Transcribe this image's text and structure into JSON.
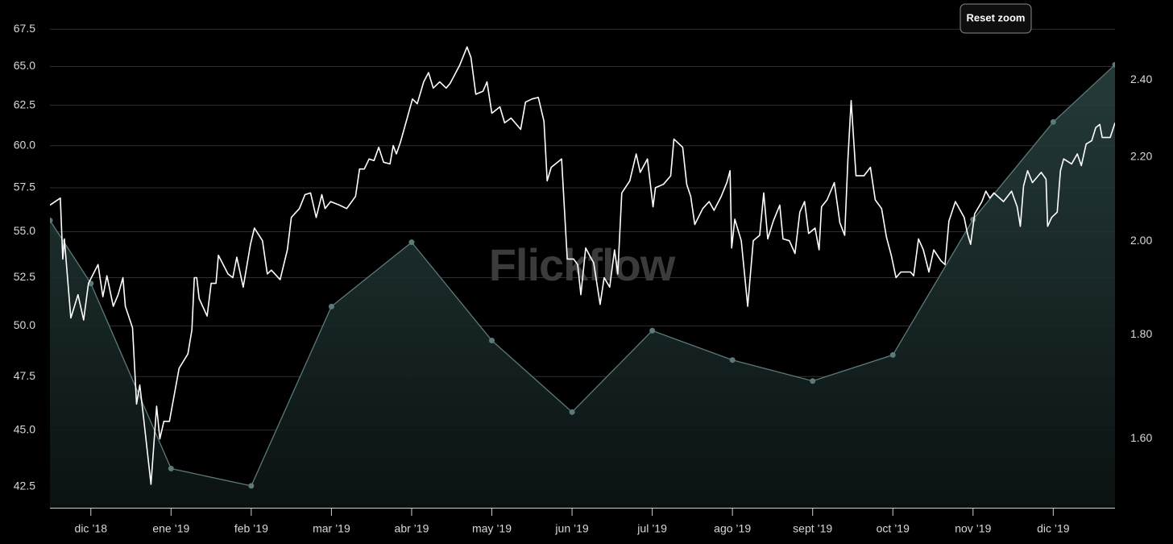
{
  "chart_data": {
    "type": "line",
    "watermark": "Flickflow",
    "reset_button": "Reset zoom",
    "xlim": [
      -0.51,
      12.77
    ],
    "xticks": [
      {
        "value": 0,
        "label": "dic ’18"
      },
      {
        "value": 1,
        "label": "ene ’19"
      },
      {
        "value": 2,
        "label": "feb ’19"
      },
      {
        "value": 3,
        "label": "mar ’19"
      },
      {
        "value": 4,
        "label": "abr ’19"
      },
      {
        "value": 5,
        "label": "may ’19"
      },
      {
        "value": 6,
        "label": "jun ’19"
      },
      {
        "value": 7,
        "label": "jul ’19"
      },
      {
        "value": 8,
        "label": "ago ’19"
      },
      {
        "value": 9,
        "label": "sept ’19"
      },
      {
        "value": 10,
        "label": "oct ’19"
      },
      {
        "value": 11,
        "label": "nov ’19"
      },
      {
        "value": 12,
        "label": "dic ’19"
      }
    ],
    "ylim": [
      41.6,
      68.4
    ],
    "ylog": true,
    "yticks": [
      42.5,
      {
        "value": 45,
        "label": "45.0"
      },
      47.5,
      {
        "value": 50,
        "label": "50.0"
      },
      52.5,
      {
        "value": 55,
        "label": "55.0"
      },
      57.5,
      {
        "value": 60,
        "label": "60.0"
      },
      62.5,
      {
        "value": 65,
        "label": "65.0"
      },
      67.5
    ],
    "y2lim": [
      1.48,
      2.58
    ],
    "y2log": true,
    "y2ticks": [
      {
        "value": 1.6,
        "label": "1.60"
      },
      {
        "value": 1.8,
        "label": "1.80"
      },
      {
        "value": 2,
        "label": "2.00"
      },
      {
        "value": 2.2,
        "label": "2.20"
      },
      {
        "value": 2.4,
        "label": "2.40"
      }
    ],
    "grid": true,
    "series": [
      {
        "type": "line",
        "color": "#ffffff",
        "x": [
          -0.51,
          -0.38,
          -0.35,
          -0.33,
          -0.25,
          -0.16,
          -0.09,
          -0.03,
          0.09,
          0.15,
          0.2,
          0.28,
          0.34,
          0.4,
          0.43,
          0.52,
          0.57,
          0.61,
          0.65,
          0.75,
          0.82,
          0.86,
          0.91,
          0.98,
          1.1,
          1.21,
          1.26,
          1.29,
          1.32,
          1.35,
          1.45,
          1.5,
          1.56,
          1.59,
          1.71,
          1.77,
          1.82,
          1.9,
          1.99,
          2.04,
          2.14,
          2.2,
          2.25,
          2.36,
          2.45,
          2.5,
          2.6,
          2.67,
          2.74,
          2.81,
          2.88,
          2.92,
          2.99,
          3.1,
          3.19,
          3.3,
          3.35,
          3.41,
          3.47,
          3.53,
          3.59,
          3.65,
          3.73,
          3.77,
          3.81,
          3.86,
          3.95,
          4.01,
          4.07,
          4.15,
          4.21,
          4.27,
          4.35,
          4.43,
          4.48,
          4.6,
          4.69,
          4.74,
          4.8,
          4.89,
          4.94,
          5.0,
          5.1,
          5.16,
          5.24,
          5.36,
          5.42,
          5.5,
          5.58,
          5.65,
          5.69,
          5.74,
          5.87,
          5.94,
          6.02,
          6.07,
          6.11,
          6.17,
          6.23,
          6.27,
          6.35,
          6.4,
          6.47,
          6.53,
          6.57,
          6.62,
          6.72,
          6.8,
          6.85,
          6.94,
          7.01,
          7.04,
          7.14,
          7.23,
          7.27,
          7.38,
          7.43,
          7.48,
          7.53,
          7.63,
          7.71,
          7.77,
          7.86,
          7.93,
          7.97,
          7.99,
          8.03,
          8.11,
          8.19,
          8.26,
          8.34,
          8.39,
          8.44,
          8.51,
          8.59,
          8.63,
          8.71,
          8.78,
          8.84,
          8.9,
          8.95,
          9.03,
          9.08,
          9.11,
          9.18,
          9.27,
          9.34,
          9.4,
          9.44,
          9.48,
          9.54,
          9.64,
          9.72,
          9.78,
          9.86,
          9.92,
          9.98,
          10.04,
          10.1,
          10.22,
          10.26,
          10.32,
          10.38,
          10.45,
          10.51,
          10.6,
          10.65,
          10.7,
          10.78,
          10.89,
          10.93,
          10.97,
          11.02,
          11.11,
          11.16,
          11.21,
          11.26,
          11.38,
          11.48,
          11.55,
          11.59,
          11.63,
          11.68,
          11.74,
          11.85,
          11.91,
          11.93,
          11.98,
          12.05,
          12.09,
          12.13,
          12.23,
          12.3,
          12.35,
          12.41,
          12.48,
          12.53,
          12.58,
          12.61,
          12.71,
          12.77
        ],
        "values": [
          56.5,
          56.9,
          53.5,
          54.6,
          50.4,
          51.6,
          50.3,
          52.2,
          53.2,
          51.5,
          52.6,
          51.0,
          51.6,
          52.5,
          51.0,
          49.9,
          46.2,
          47.1,
          45.8,
          42.6,
          46.1,
          44.6,
          45.4,
          45.4,
          47.9,
          48.6,
          49.8,
          52.5,
          52.5,
          51.4,
          50.5,
          52.2,
          52.2,
          53.7,
          52.7,
          52.5,
          53.6,
          52.0,
          54.3,
          55.2,
          54.5,
          52.7,
          52.9,
          52.4,
          54.0,
          55.8,
          56.3,
          57.1,
          57.2,
          55.8,
          57.1,
          56.3,
          56.7,
          56.5,
          56.3,
          57.0,
          58.6,
          58.6,
          59.2,
          59.1,
          59.9,
          59.0,
          58.9,
          60.0,
          59.5,
          60.2,
          61.8,
          62.9,
          62.6,
          64.0,
          64.6,
          63.6,
          64.0,
          63.6,
          63.9,
          65.1,
          66.3,
          65.6,
          63.2,
          63.4,
          64.0,
          62.0,
          62.4,
          61.4,
          61.7,
          61.0,
          62.7,
          62.9,
          63.0,
          61.5,
          57.9,
          58.7,
          59.2,
          53.5,
          53.5,
          53.2,
          51.6,
          54.1,
          53.6,
          53.3,
          51.1,
          52.5,
          52.0,
          54.0,
          52.7,
          57.2,
          57.9,
          59.5,
          58.4,
          59.2,
          56.4,
          57.5,
          57.7,
          58.2,
          60.4,
          59.9,
          57.7,
          57.0,
          55.4,
          56.3,
          56.7,
          56.2,
          57.0,
          57.8,
          58.5,
          54.1,
          55.7,
          54.5,
          51.0,
          54.5,
          54.8,
          57.2,
          54.6,
          55.6,
          56.5,
          54.6,
          54.5,
          53.8,
          56.1,
          56.7,
          54.9,
          55.2,
          54.0,
          56.4,
          56.8,
          57.8,
          55.5,
          54.8,
          59.2,
          62.8,
          58.2,
          58.2,
          58.7,
          56.8,
          56.3,
          54.7,
          53.7,
          52.5,
          52.8,
          52.8,
          52.6,
          54.6,
          54.0,
          52.8,
          54.0,
          53.4,
          53.2,
          55.6,
          56.7,
          55.8,
          54.9,
          54.3,
          56.0,
          56.7,
          57.3,
          56.9,
          57.2,
          56.7,
          57.3,
          56.4,
          55.3,
          57.6,
          58.5,
          57.8,
          58.4,
          58.0,
          55.3,
          55.8,
          56.1,
          58.5,
          59.2,
          58.9,
          59.5,
          58.8,
          60.1,
          60.3,
          61.1,
          61.3,
          60.5,
          60.5,
          61.4
        ]
      },
      {
        "type": "area",
        "axis": "y2",
        "color": "#5b7a79",
        "x": [
          -0.51,
          0,
          1,
          2,
          3,
          4,
          5,
          6,
          7,
          8,
          9,
          10,
          11,
          12,
          12.77
        ],
        "values": [
          2.048,
          1.907,
          1.547,
          1.517,
          1.858,
          1.998,
          1.788,
          1.649,
          1.808,
          1.749,
          1.708,
          1.759,
          2.05,
          2.289,
          2.442
        ]
      }
    ]
  }
}
